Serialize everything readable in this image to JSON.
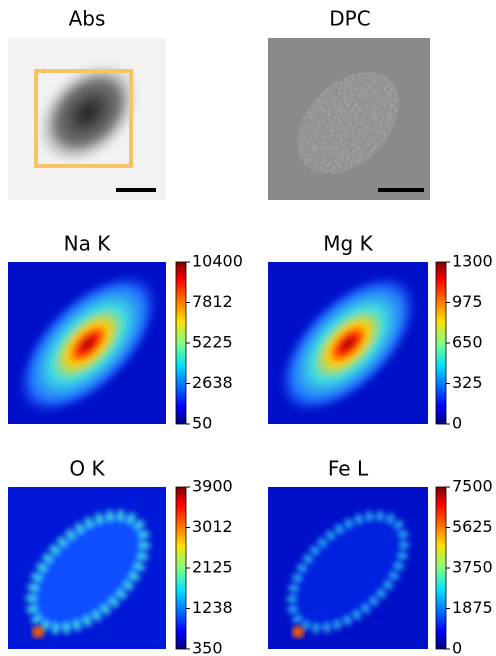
{
  "panels": [
    {
      "title": "Abs"
    },
    {
      "title": "DPC"
    },
    {
      "title": "Na K",
      "colorbar": {
        "lim": [
          50,
          10400
        ],
        "ticks": [
          50,
          2638,
          5225,
          7812,
          10400
        ]
      }
    },
    {
      "title": "Mg K",
      "colorbar": {
        "lim": [
          0,
          1300
        ],
        "ticks": [
          0,
          325,
          650,
          975,
          1300
        ]
      }
    },
    {
      "title": "O K",
      "colorbar": {
        "lim": [
          350,
          3900
        ],
        "ticks": [
          350,
          1238,
          2125,
          3012,
          3900
        ]
      }
    },
    {
      "title": "Fe L",
      "colorbar": {
        "lim": [
          0,
          7500
        ],
        "ticks": [
          0,
          1875,
          3750,
          5625,
          7500
        ]
      }
    }
  ]
}
